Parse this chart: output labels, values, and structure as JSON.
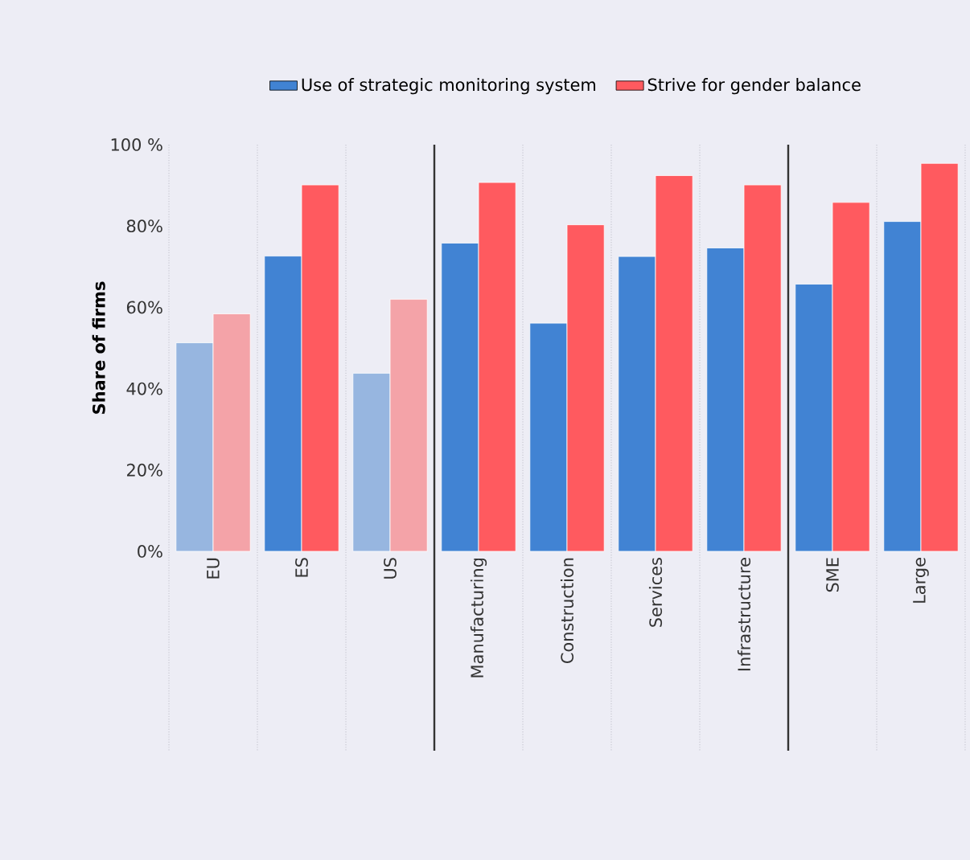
{
  "chart_data": {
    "type": "bar",
    "ylabel": "Share of firms",
    "categories": [
      "EU",
      "ES",
      "US",
      "Manufacturing",
      "Construction",
      "Services",
      "Infrastructure",
      "SME",
      "Large"
    ],
    "series": [
      {
        "name": "Use of strategic monitoring system",
        "color": "#4183d3",
        "colors": [
          "#97b6e0",
          "#4183d3",
          "#97b6e0",
          "#4183d3",
          "#4183d3",
          "#4183d3",
          "#4183d3",
          "#4183d3",
          "#4183d3"
        ],
        "values": [
          51.3,
          72.6,
          43.8,
          75.8,
          56.1,
          72.5,
          74.6,
          65.7,
          81.1
        ]
      },
      {
        "name": "Strive for gender balance",
        "color": "#ff5a5f",
        "colors": [
          "#f4a3a8",
          "#ff5a5f",
          "#f4a3a8",
          "#ff5a5f",
          "#ff5a5f",
          "#ff5a5f",
          "#ff5a5f",
          "#ff5a5f",
          "#ff5a5f"
        ],
        "values": [
          58.4,
          90.1,
          62.0,
          90.7,
          80.3,
          92.4,
          90.1,
          85.8,
          95.4
        ]
      }
    ],
    "ylim": [
      0,
      100
    ],
    "yticks": [
      {
        "value": 0,
        "label": "0%"
      },
      {
        "value": 20,
        "label": "20%"
      },
      {
        "value": 40,
        "label": "40%"
      },
      {
        "value": 60,
        "label": "60%"
      },
      {
        "value": 80,
        "label": "80%"
      },
      {
        "value": 100,
        "label": "100 %"
      }
    ],
    "grid": "x",
    "legend": "top"
  }
}
